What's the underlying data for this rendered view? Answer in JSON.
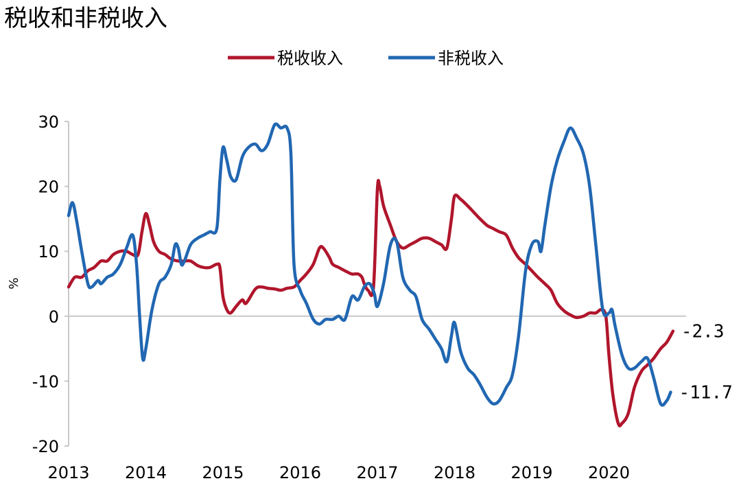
{
  "chart_data": {
    "type": "line",
    "title": "税收和非税收入",
    "ylabel": "%",
    "xlabel": "",
    "ylim": [
      -20,
      30
    ],
    "yticks": [
      30,
      20,
      10,
      0,
      -10,
      -20
    ],
    "xlim": [
      2013,
      2021
    ],
    "xticks": [
      "2013",
      "2014",
      "2015",
      "2016",
      "2017",
      "2018",
      "2019",
      "2020"
    ],
    "legend_position": "top-center",
    "grid": false,
    "colors": {
      "tax": "#B0162C",
      "nontax": "#2167B2",
      "axis": "#C8C8C8"
    },
    "series": [
      {
        "name": "税收收入",
        "color": "#B0162C",
        "end_label": "-2.3",
        "points": [
          [
            2013.0,
            4.5
          ],
          [
            2013.08,
            6
          ],
          [
            2013.17,
            6
          ],
          [
            2013.25,
            7
          ],
          [
            2013.33,
            7.5
          ],
          [
            2013.42,
            8.5
          ],
          [
            2013.5,
            8.5
          ],
          [
            2013.58,
            9.5
          ],
          [
            2013.67,
            10
          ],
          [
            2013.75,
            10
          ],
          [
            2013.83,
            9.5
          ],
          [
            2013.9,
            9.5
          ],
          [
            2013.95,
            13
          ],
          [
            2014.0,
            15.8
          ],
          [
            2014.05,
            14
          ],
          [
            2014.1,
            11.5
          ],
          [
            2014.17,
            10
          ],
          [
            2014.25,
            9.5
          ],
          [
            2014.33,
            8.8
          ],
          [
            2014.42,
            8.5
          ],
          [
            2014.5,
            8.5
          ],
          [
            2014.58,
            8.5
          ],
          [
            2014.67,
            7.8
          ],
          [
            2014.75,
            7.5
          ],
          [
            2014.83,
            7.5
          ],
          [
            2014.92,
            8
          ],
          [
            2014.96,
            7.5
          ],
          [
            2015.0,
            3
          ],
          [
            2015.05,
            1
          ],
          [
            2015.1,
            0.5
          ],
          [
            2015.17,
            1.5
          ],
          [
            2015.25,
            2.5
          ],
          [
            2015.3,
            2
          ],
          [
            2015.42,
            4.2
          ],
          [
            2015.5,
            4.5
          ],
          [
            2015.58,
            4.3
          ],
          [
            2015.67,
            4.2
          ],
          [
            2015.75,
            4
          ],
          [
            2015.83,
            4.3
          ],
          [
            2015.92,
            4.5
          ],
          [
            2016.0,
            5.5
          ],
          [
            2016.08,
            6.5
          ],
          [
            2016.17,
            8
          ],
          [
            2016.25,
            10.5
          ],
          [
            2016.3,
            10.5
          ],
          [
            2016.38,
            9
          ],
          [
            2016.42,
            8
          ],
          [
            2016.5,
            7.5
          ],
          [
            2016.58,
            7
          ],
          [
            2016.67,
            6.5
          ],
          [
            2016.75,
            6.5
          ],
          [
            2016.8,
            6
          ],
          [
            2016.83,
            5
          ],
          [
            2016.88,
            4
          ],
          [
            2016.95,
            4.5
          ],
          [
            2017.0,
            19.5
          ],
          [
            2017.03,
            20
          ],
          [
            2017.08,
            17
          ],
          [
            2017.17,
            14
          ],
          [
            2017.25,
            11.5
          ],
          [
            2017.33,
            10.5
          ],
          [
            2017.42,
            11
          ],
          [
            2017.5,
            11.5
          ],
          [
            2017.58,
            12
          ],
          [
            2017.67,
            12
          ],
          [
            2017.75,
            11.5
          ],
          [
            2017.83,
            11
          ],
          [
            2017.9,
            10.5
          ],
          [
            2017.96,
            15
          ],
          [
            2018.0,
            18.5
          ],
          [
            2018.08,
            18
          ],
          [
            2018.17,
            17
          ],
          [
            2018.25,
            16
          ],
          [
            2018.33,
            15
          ],
          [
            2018.42,
            14
          ],
          [
            2018.5,
            13.5
          ],
          [
            2018.58,
            13
          ],
          [
            2018.67,
            12.5
          ],
          [
            2018.75,
            10.5
          ],
          [
            2018.83,
            9
          ],
          [
            2018.92,
            8
          ],
          [
            2019.0,
            7
          ],
          [
            2019.08,
            6
          ],
          [
            2019.17,
            5
          ],
          [
            2019.25,
            4
          ],
          [
            2019.33,
            2
          ],
          [
            2019.42,
            0.8
          ],
          [
            2019.5,
            0.2
          ],
          [
            2019.58,
            -0.2
          ],
          [
            2019.67,
            0
          ],
          [
            2019.75,
            0.5
          ],
          [
            2019.83,
            0.5
          ],
          [
            2019.9,
            1
          ],
          [
            2019.96,
            0
          ],
          [
            2020.0,
            -6
          ],
          [
            2020.05,
            -12
          ],
          [
            2020.12,
            -16.5
          ],
          [
            2020.17,
            -16.5
          ],
          [
            2020.25,
            -15
          ],
          [
            2020.33,
            -11
          ],
          [
            2020.42,
            -8.5
          ],
          [
            2020.5,
            -7.5
          ],
          [
            2020.58,
            -6.5
          ],
          [
            2020.67,
            -5
          ],
          [
            2020.75,
            -4
          ],
          [
            2020.83,
            -2.3
          ]
        ]
      },
      {
        "name": "非税收入",
        "color": "#2167B2",
        "end_label": "-11.7",
        "points": [
          [
            2013.0,
            15.5
          ],
          [
            2013.05,
            17.5
          ],
          [
            2013.1,
            15
          ],
          [
            2013.17,
            10
          ],
          [
            2013.25,
            5
          ],
          [
            2013.3,
            4.5
          ],
          [
            2013.38,
            5.5
          ],
          [
            2013.42,
            5
          ],
          [
            2013.5,
            6
          ],
          [
            2013.58,
            6.5
          ],
          [
            2013.67,
            8
          ],
          [
            2013.75,
            10.5
          ],
          [
            2013.83,
            12.5
          ],
          [
            2013.88,
            8
          ],
          [
            2013.92,
            0
          ],
          [
            2013.96,
            -6.5
          ],
          [
            2014.0,
            -5
          ],
          [
            2014.08,
            1
          ],
          [
            2014.17,
            5
          ],
          [
            2014.25,
            6
          ],
          [
            2014.33,
            8
          ],
          [
            2014.38,
            11
          ],
          [
            2014.42,
            10.5
          ],
          [
            2014.46,
            8
          ],
          [
            2014.5,
            8.5
          ],
          [
            2014.58,
            11
          ],
          [
            2014.67,
            12
          ],
          [
            2014.75,
            12.5
          ],
          [
            2014.83,
            13
          ],
          [
            2014.92,
            13.5
          ],
          [
            2014.96,
            21
          ],
          [
            2015.0,
            26
          ],
          [
            2015.05,
            24
          ],
          [
            2015.1,
            21.5
          ],
          [
            2015.17,
            21
          ],
          [
            2015.25,
            24.5
          ],
          [
            2015.33,
            26
          ],
          [
            2015.42,
            26.5
          ],
          [
            2015.5,
            25.5
          ],
          [
            2015.58,
            26.5
          ],
          [
            2015.67,
            29.5
          ],
          [
            2015.75,
            29
          ],
          [
            2015.83,
            29
          ],
          [
            2015.88,
            25
          ],
          [
            2015.92,
            8
          ],
          [
            2016.0,
            4
          ],
          [
            2016.08,
            2
          ],
          [
            2016.17,
            -0.5
          ],
          [
            2016.25,
            -1.2
          ],
          [
            2016.33,
            -0.5
          ],
          [
            2016.42,
            -0.5
          ],
          [
            2016.5,
            0
          ],
          [
            2016.58,
            -0.5
          ],
          [
            2016.67,
            3
          ],
          [
            2016.75,
            2.5
          ],
          [
            2016.83,
            4.5
          ],
          [
            2016.9,
            5
          ],
          [
            2016.96,
            3.5
          ],
          [
            2017.0,
            1.5
          ],
          [
            2017.08,
            5
          ],
          [
            2017.17,
            11
          ],
          [
            2017.25,
            11.5
          ],
          [
            2017.33,
            6
          ],
          [
            2017.42,
            4
          ],
          [
            2017.5,
            3
          ],
          [
            2017.58,
            -0.5
          ],
          [
            2017.67,
            -2
          ],
          [
            2017.75,
            -3.5
          ],
          [
            2017.83,
            -5
          ],
          [
            2017.9,
            -7
          ],
          [
            2017.96,
            -3
          ],
          [
            2018.0,
            -1
          ],
          [
            2018.08,
            -5.5
          ],
          [
            2018.17,
            -8
          ],
          [
            2018.25,
            -9
          ],
          [
            2018.33,
            -10.5
          ],
          [
            2018.42,
            -12.5
          ],
          [
            2018.5,
            -13.5
          ],
          [
            2018.58,
            -13
          ],
          [
            2018.67,
            -11
          ],
          [
            2018.75,
            -9
          ],
          [
            2018.83,
            -3
          ],
          [
            2018.92,
            7
          ],
          [
            2019.0,
            11
          ],
          [
            2019.08,
            11.5
          ],
          [
            2019.12,
            10
          ],
          [
            2019.17,
            14
          ],
          [
            2019.25,
            20
          ],
          [
            2019.33,
            24
          ],
          [
            2019.42,
            27
          ],
          [
            2019.5,
            29
          ],
          [
            2019.58,
            27.5
          ],
          [
            2019.67,
            25
          ],
          [
            2019.75,
            20
          ],
          [
            2019.83,
            11
          ],
          [
            2019.92,
            1
          ],
          [
            2020.0,
            0.5
          ],
          [
            2020.04,
            1
          ],
          [
            2020.08,
            -1.5
          ],
          [
            2020.17,
            -6
          ],
          [
            2020.25,
            -8
          ],
          [
            2020.33,
            -8
          ],
          [
            2020.42,
            -7
          ],
          [
            2020.5,
            -6.5
          ],
          [
            2020.58,
            -9.5
          ],
          [
            2020.67,
            -13.5
          ],
          [
            2020.75,
            -13
          ],
          [
            2020.8,
            -11.7
          ]
        ]
      }
    ]
  }
}
